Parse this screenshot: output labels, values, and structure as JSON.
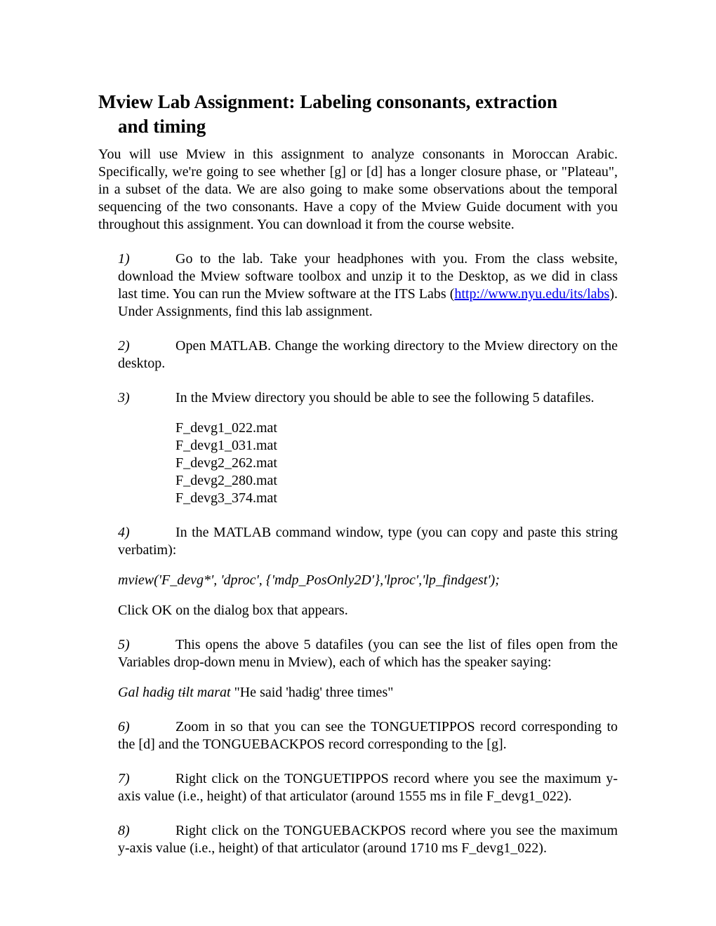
{
  "title_line1": "Mview Lab Assignment: Labeling consonants, extraction",
  "title_line2": "and timing",
  "intro_a": "You will use Mview in this assignment to analyze consonants in Moroccan Arabic. Specifically, we're going to see whether [g] or [d] has a longer closure phase, or \"Plateau\", in a subset of the data. We are also going to make some observations about the temporal sequencing of the two consonants. Have a copy of the Mview Guide document with you throughout this assignment. You can download it from the course website.",
  "step1_num": "1)",
  "step1_a": "Go to the lab. Take your headphones with you. From the class website, download the Mview software toolbox and unzip it to the Desktop, as we did in class last time. You can run the Mview software at the ITS Labs (",
  "step1_link": "http://www.nyu.edu/its/labs",
  "step1_b": "). Under Assignments, find this lab assignment.",
  "step2_num": "2)",
  "step2": "Open MATLAB. Change the working directory to the Mview directory on the desktop.",
  "step3_num": "3)",
  "step3": "In the Mview directory you should be able to see the following 5 datafiles.",
  "files": {
    "f1": "F_devg1_022.mat",
    "f2": "F_devg1_031.mat",
    "f3": "F_devg2_262.mat",
    "f4": "F_devg2_280.mat",
    "f5": "F_devg3_374.mat"
  },
  "step4_num": "4)",
  "step4": "In the MATLAB command window, type (you can copy and paste this string verbatim):",
  "cmd": "mview('F_devg*', 'dproc', {'mdp_PosOnly2D'},'lproc','lp_findgest');",
  "click_ok": "Click OK on the dialog box that appears.",
  "step5_num": "5)",
  "step5": "This opens the above 5 datafiles (you can see the list of files open from the Variables drop-down menu in Mview), each of which has the speaker saying:",
  "utterance_ital": "Gal hadɨg tɨlt marat",
  "utterance_rest": " \"He said 'hadɨg' three times\"",
  "step6_num": "6)",
  "step6": "Zoom in so that you can see the TONGUETIPPOS record corresponding to the [d] and the TONGUEBACKPOS record corresponding to the [g].",
  "step7_num": "7)",
  "step7": "Right click on the TONGUETIPPOS record where you see the maximum y-axis value (i.e., height) of that articulator (around 1555 ms in file F_devg1_022).",
  "step8_num": "8)",
  "step8": "Right click on the TONGUEBACKPOS record where you see the maximum y-axis value (i.e., height) of that articulator (around 1710 ms F_devg1_022)."
}
